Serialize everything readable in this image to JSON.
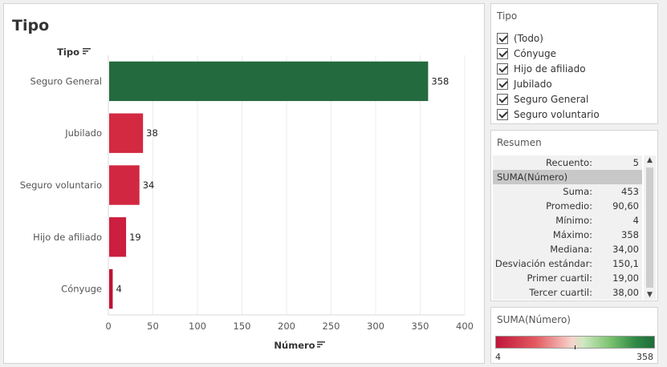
{
  "viz": {
    "title": "Tipo",
    "sort_icon": "sort-icon"
  },
  "chart_data": {
    "type": "bar",
    "orientation": "horizontal",
    "title": "Tipo",
    "row_header": "Tipo",
    "xlabel": "Número",
    "categories": [
      "Seguro General",
      "Jubilado",
      "Seguro voluntario",
      "Hijo de afiliado",
      "Cónyuge"
    ],
    "values": [
      358,
      38,
      34,
      19,
      4
    ],
    "value_labels": [
      "358",
      "38",
      "34",
      "19",
      "4"
    ],
    "xlim": [
      0,
      400
    ],
    "ticks": [
      0,
      50,
      100,
      150,
      200,
      250,
      300,
      350,
      400
    ],
    "tick_labels": [
      "0",
      "50",
      "100",
      "150",
      "200",
      "250",
      "300",
      "350",
      "400"
    ],
    "grid": true,
    "colors": {
      "Seguro General": "#236a3e",
      "Jubilado": "#d32941",
      "Seguro voluntario": "#d22740",
      "Hijo de afiliado": "#cc1e3e",
      "Cónyuge": "#bd1237"
    }
  },
  "filter": {
    "title": "Tipo",
    "items": [
      {
        "label": "(Todo)",
        "checked": true
      },
      {
        "label": "Cónyuge",
        "checked": true
      },
      {
        "label": "Hijo de afiliado",
        "checked": true
      },
      {
        "label": "Jubilado",
        "checked": true
      },
      {
        "label": "Seguro General",
        "checked": true
      },
      {
        "label": "Seguro voluntario",
        "checked": true
      }
    ]
  },
  "summary": {
    "title": "Resumen",
    "count_label": "Recuento:",
    "count_value": "5",
    "measure_header": "SUMA(Número)",
    "rows": [
      {
        "label": "Suma:",
        "value": "453"
      },
      {
        "label": "Promedio:",
        "value": "90,60"
      },
      {
        "label": "Mínimo:",
        "value": "4"
      },
      {
        "label": "Máximo:",
        "value": "358"
      },
      {
        "label": "Mediana:",
        "value": "34,00"
      },
      {
        "label": "Desviación estándar:",
        "value": "150,1"
      },
      {
        "label": "Primer cuartil:",
        "value": "19,00"
      },
      {
        "label": "Tercer cuartil:",
        "value": "38,00"
      }
    ]
  },
  "legend": {
    "title": "SUMA(Número)",
    "min_label": "4",
    "max_label": "358",
    "colors": {
      "low": "#c0153a",
      "mid": "#f6d3cc",
      "high": "#1f6b3a"
    }
  }
}
